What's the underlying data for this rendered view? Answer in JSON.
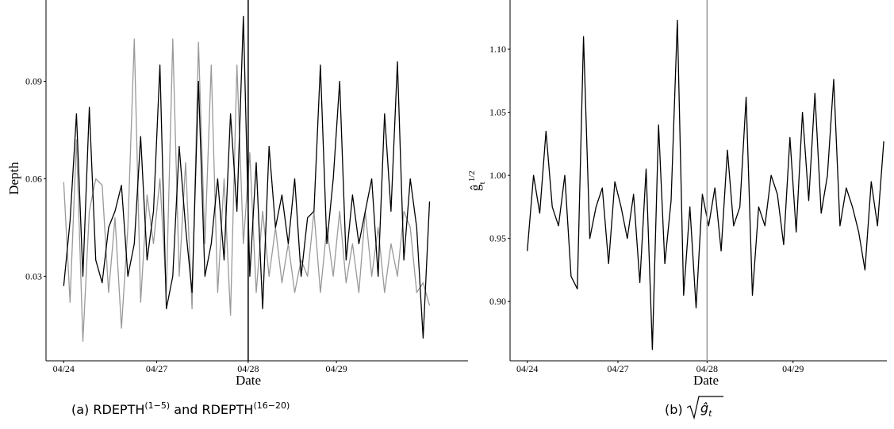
{
  "chart_data": [
    {
      "type": "line",
      "ylabel": "Depth",
      "xlabel": "Date",
      "caption": [
        "(a)  RDEPTH",
        "(1−5)",
        " and RDEPTH",
        "(16−20)"
      ],
      "x": [
        0,
        4,
        8,
        12,
        16,
        20,
        24,
        28,
        32,
        36,
        40,
        44,
        48,
        52,
        56,
        60,
        64,
        68,
        72,
        76,
        80,
        84,
        88,
        92,
        96,
        100,
        104,
        108,
        112,
        116,
        120,
        124,
        128,
        132,
        136,
        140,
        144,
        148,
        152,
        156,
        160,
        164,
        168,
        172,
        176,
        180,
        184,
        188,
        192,
        196,
        200,
        204,
        208,
        212,
        216,
        220,
        224,
        228
      ],
      "xlim": [
        -11,
        252
      ],
      "xticks": [
        {
          "value": 0,
          "label": "04/24"
        },
        {
          "value": 58,
          "label": "04/27"
        },
        {
          "value": 115,
          "label": "04/28"
        },
        {
          "value": 170,
          "label": "04/29"
        }
      ],
      "ylim": [
        0.004,
        0.115
      ],
      "yticks": [
        0.03,
        0.06,
        0.09
      ],
      "vline": 115,
      "vline_color": "#000000",
      "series": [
        {
          "color": "#999999",
          "values": [
            0.059,
            0.022,
            0.072,
            0.01,
            0.05,
            0.06,
            0.058,
            0.025,
            0.048,
            0.014,
            0.045,
            0.103,
            0.022,
            0.055,
            0.04,
            0.06,
            0.025,
            0.103,
            0.03,
            0.065,
            0.02,
            0.102,
            0.04,
            0.095,
            0.025,
            0.06,
            0.018,
            0.095,
            0.04,
            0.068,
            0.025,
            0.05,
            0.03,
            0.045,
            0.028,
            0.04,
            0.025,
            0.035,
            0.03,
            0.05,
            0.025,
            0.045,
            0.03,
            0.05,
            0.028,
            0.04,
            0.025,
            0.05,
            0.03,
            0.045,
            0.025,
            0.04,
            0.03,
            0.05,
            0.045,
            0.025,
            0.028,
            0.021
          ]
        },
        {
          "color": "#000000",
          "values": [
            0.027,
            0.047,
            0.08,
            0.03,
            0.082,
            0.035,
            0.028,
            0.045,
            0.05,
            0.058,
            0.03,
            0.04,
            0.073,
            0.035,
            0.05,
            0.095,
            0.02,
            0.03,
            0.07,
            0.045,
            0.025,
            0.09,
            0.03,
            0.04,
            0.06,
            0.035,
            0.08,
            0.05,
            0.11,
            0.03,
            0.065,
            0.02,
            0.07,
            0.045,
            0.055,
            0.04,
            0.06,
            0.03,
            0.048,
            0.05,
            0.095,
            0.04,
            0.06,
            0.09,
            0.035,
            0.055,
            0.04,
            0.05,
            0.06,
            0.03,
            0.08,
            0.05,
            0.096,
            0.035,
            0.06,
            0.045,
            0.011,
            0.053
          ]
        }
      ]
    },
    {
      "type": "line",
      "ylabel": [
        "ĝ",
        "t",
        "1/2"
      ],
      "xlabel": "Date",
      "caption": [
        "(b)",
        "ĝ",
        "t"
      ],
      "x": [
        0,
        4,
        8,
        12,
        16,
        20,
        24,
        28,
        32,
        36,
        40,
        44,
        48,
        52,
        56,
        60,
        64,
        68,
        72,
        76,
        80,
        84,
        88,
        92,
        96,
        100,
        104,
        108,
        112,
        116,
        120,
        124,
        128,
        132,
        136,
        140,
        144,
        148,
        152,
        156,
        160,
        164,
        168,
        172,
        176,
        180,
        184,
        188,
        192,
        196,
        200,
        204,
        208,
        212,
        216,
        220,
        224,
        228
      ],
      "xlim": [
        -11,
        230
      ],
      "xticks": [
        {
          "value": 0,
          "label": "04/24"
        },
        {
          "value": 58,
          "label": "04/27"
        },
        {
          "value": 115,
          "label": "04/28"
        },
        {
          "value": 170,
          "label": "04/29"
        }
      ],
      "ylim": [
        0.853,
        1.139
      ],
      "yticks": [
        {
          "value": 0.9,
          "label": "0.90"
        },
        {
          "value": 0.95,
          "label": "0.95"
        },
        {
          "value": 1.0,
          "label": "1.00"
        },
        {
          "value": 1.05,
          "label": "1.05"
        },
        {
          "value": 1.1,
          "label": "1.10"
        }
      ],
      "vline": 115,
      "vline_color": "#999999",
      "series": [
        {
          "color": "#000000",
          "values": [
            0.94,
            1.0,
            0.97,
            1.035,
            0.975,
            0.96,
            1.0,
            0.92,
            0.91,
            1.11,
            0.95,
            0.975,
            0.99,
            0.93,
            0.995,
            0.975,
            0.95,
            0.985,
            0.915,
            1.005,
            0.862,
            1.04,
            0.93,
            0.98,
            1.123,
            0.905,
            0.975,
            0.895,
            0.985,
            0.96,
            0.99,
            0.94,
            1.02,
            0.96,
            0.975,
            1.062,
            0.905,
            0.975,
            0.96,
            1.0,
            0.985,
            0.945,
            1.03,
            0.955,
            1.05,
            0.98,
            1.065,
            0.97,
            1.0,
            1.076,
            0.96,
            0.99,
            0.975,
            0.955,
            0.925,
            0.995,
            0.96,
            1.027
          ]
        }
      ]
    }
  ]
}
